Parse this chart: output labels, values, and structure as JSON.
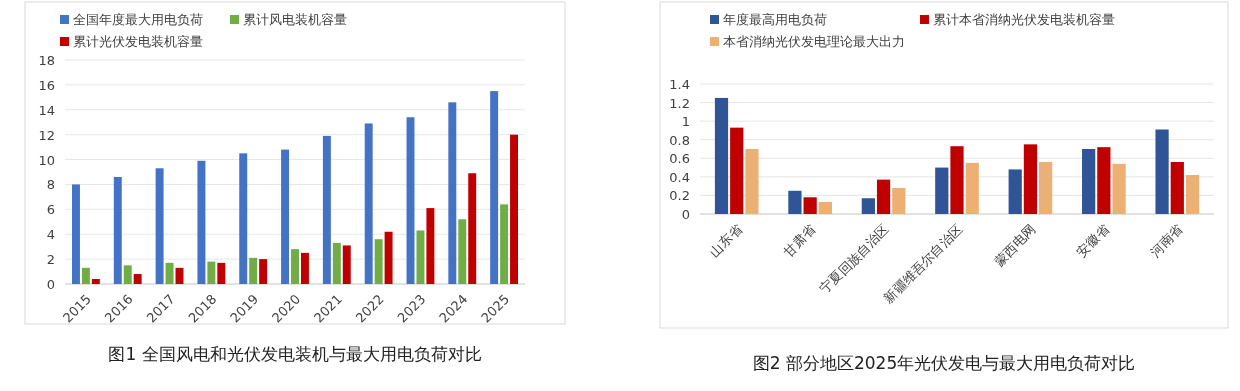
{
  "chart_data": [
    {
      "type": "bar",
      "title": "图1 全国风电和光伏发电装机与最大用电负荷对比",
      "categories": [
        "2015",
        "2016",
        "2017",
        "2018",
        "2019",
        "2020",
        "2021",
        "2022",
        "2023",
        "2024",
        "2025"
      ],
      "ylim": [
        0,
        18
      ],
      "yticks": [
        0,
        2,
        4,
        6,
        8,
        10,
        12,
        14,
        16,
        18
      ],
      "grid": "y",
      "legend": "top",
      "series": [
        {
          "name": "全国年度最大用电负荷",
          "color": "#4472c4",
          "values": [
            8.0,
            8.6,
            9.3,
            9.9,
            10.5,
            10.8,
            11.9,
            12.9,
            13.4,
            14.6,
            15.5
          ]
        },
        {
          "name": "累计风电装机容量",
          "color": "#70ad47",
          "values": [
            1.3,
            1.5,
            1.7,
            1.8,
            2.1,
            2.8,
            3.3,
            3.6,
            4.3,
            5.2,
            6.4
          ]
        },
        {
          "name": "累计光伏发电装机容量",
          "color": "#c00000",
          "values": [
            0.4,
            0.8,
            1.3,
            1.7,
            2.0,
            2.5,
            3.1,
            4.2,
            6.1,
            8.9,
            12.0
          ]
        }
      ]
    },
    {
      "type": "bar",
      "title": "图2 部分地区2025年光伏发电与最大用电负荷对比",
      "categories": [
        "山东省",
        "甘肃省",
        "宁夏回族自治区",
        "新疆维吾尔自治区",
        "蒙西电网",
        "安徽省",
        "河南省"
      ],
      "ylim": [
        0,
        1.4
      ],
      "yticks": [
        0,
        0.2,
        0.4,
        0.6,
        0.8,
        1,
        1.2,
        1.4
      ],
      "grid": "y",
      "legend": "top",
      "series": [
        {
          "name": "年度最高用电负荷",
          "color": "#2f5597",
          "values": [
            1.25,
            0.25,
            0.17,
            0.5,
            0.48,
            0.7,
            0.91
          ]
        },
        {
          "name": "累计本省消纳光伏发电装机容量",
          "color": "#c00000",
          "values": [
            0.93,
            0.18,
            0.37,
            0.73,
            0.75,
            0.72,
            0.56
          ]
        },
        {
          "name": "本省消纳光伏发电理论最大出力",
          "color": "#edb074",
          "values": [
            0.7,
            0.13,
            0.28,
            0.55,
            0.56,
            0.54,
            0.42
          ]
        }
      ]
    }
  ]
}
